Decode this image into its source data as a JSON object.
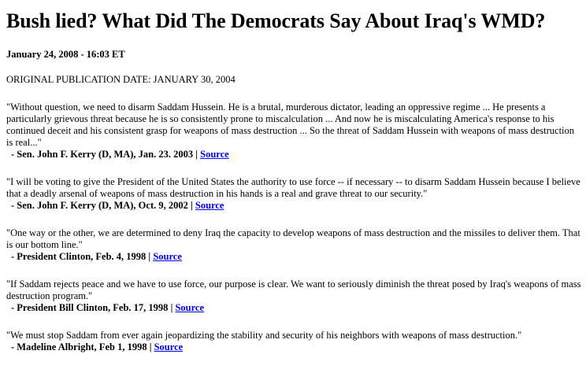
{
  "title": "Bush lied? What Did The Democrats Say About Iraq's WMD?",
  "dateline": "January 24, 2008 - 16:03 ET",
  "original_publication": "ORIGINAL PUBLICATION DATE: JANUARY 30, 2004",
  "quotes": [
    {
      "text": "\"Without question, we need to disarm Saddam Hussein. He is a brutal, murderous dictator, leading an oppressive regime ... He presents a particularly grievous threat because he is so consistently prone to miscalculation ... And now he is miscalculating America's response to his continued deceit and his consistent grasp for weapons of mass destruction ... So the threat of Saddam Hussein with weapons of mass destruction is real...\"",
      "attribution": "- Sen. John F. Kerry (D, MA), Jan. 23. 2003",
      "sep": " | ",
      "link": "Source"
    },
    {
      "text": "\"I will be voting to give the President of the United States the authority to use force -- if necessary -- to disarm Saddam Hussein because I believe that a deadly arsenal of weapons of mass destruction in his hands is a real and grave threat to our security.\"",
      "attribution": "- Sen. John F. Kerry (D, MA), Oct. 9, 2002",
      "sep": " | ",
      "link": "Source"
    },
    {
      "text": "\"One way or the other, we are determined to deny Iraq the capacity to develop weapons of mass destruction and the missiles to deliver them. That is our bottom line.\"",
      "attribution": "- President Clinton, Feb. 4, 1998",
      "sep": " | ",
      "link": "Source"
    },
    {
      "text": "\"If Saddam rejects peace and we have to use force, our purpose is clear. We want to seriously diminish the threat posed by Iraq's weapons of mass destruction program.\"",
      "attribution": "- President Bill Clinton, Feb. 17, 1998",
      "sep": " | ",
      "link": "Source"
    },
    {
      "text": "\"We must stop Saddam from ever again jeopardizing the stability and security of his neighbors with weapons of mass destruction.\"",
      "attribution": "- Madeline Albright, Feb 1, 1998",
      "sep": " | ",
      "link": "Source"
    }
  ],
  "colors": {
    "link": "#0000ee"
  }
}
